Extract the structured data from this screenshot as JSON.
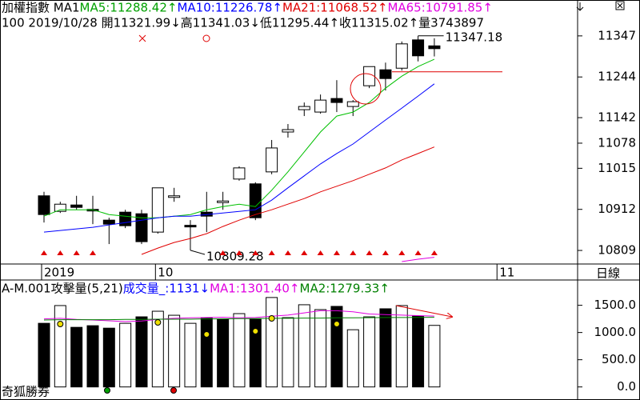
{
  "chart_data": [
    {
      "type": "candlestick",
      "title_parts": [
        {
          "text": "加權指數 MA1 ",
          "color": "#000000"
        },
        {
          "text": "MA5:11288.42↑",
          "color": "#00a000"
        },
        {
          "text": "MA10:11226.78↑",
          "color": "#0000ff"
        },
        {
          "text": "MA21:11068.52↑",
          "color": "#e00000"
        },
        {
          "text": "MA65:10791.85↑",
          "color": "#e000e0"
        }
      ],
      "info_parts": [
        {
          "text": "100 2019/10/28 開11321.99↓高11341.03↓低11295.44↑收11315.02↑量3743897",
          "color": "#000000"
        }
      ],
      "categories": [
        "2019",
        null,
        null,
        null,
        null,
        null,
        null,
        "10",
        null,
        null,
        null,
        null,
        null,
        null,
        null,
        null,
        null,
        null,
        null,
        null,
        null,
        null,
        null,
        null,
        null,
        null,
        null,
        null,
        "11",
        null,
        null,
        null,
        null
      ],
      "open": [
        10946,
        10907,
        10923,
        10912,
        10885,
        10905,
        10901,
        10855,
        10946,
        10872,
        10905,
        10933,
        10988,
        10976,
        11006,
        11106,
        11162,
        11156,
        11190,
        11170,
        11222,
        11262,
        11266,
        11337,
        11321.99,
        null,
        null,
        null,
        null,
        null,
        null,
        null,
        null
      ],
      "high": [
        10956,
        10931,
        10946,
        10946,
        10891,
        10911,
        10911,
        10966,
        10966,
        10885,
        10956,
        10956,
        11020,
        10980,
        11086,
        11126,
        11180,
        11200,
        11236,
        11186,
        11270,
        11280,
        11333,
        11347.18,
        11341.03,
        null,
        null,
        null,
        null,
        null,
        null,
        null,
        null
      ],
      "low": [
        10879,
        10903,
        10911,
        10875,
        10825,
        10865,
        10825,
        10851,
        10931,
        10809.28,
        10855,
        10911,
        10984,
        10885,
        11000,
        11092,
        11146,
        11152,
        11156,
        11146,
        11216,
        11210,
        11260,
        11283,
        11295.44,
        null,
        null,
        null,
        null,
        null,
        null,
        null,
        null
      ],
      "close": [
        10899,
        10925,
        10917,
        10911,
        10875,
        10871,
        10831,
        10966,
        10946,
        10871,
        10895,
        10933,
        11016,
        10891,
        11066,
        11112,
        11170,
        11186,
        11180,
        11182,
        11270,
        11240,
        11327,
        11297,
        11315.02,
        null,
        null,
        null,
        null,
        null,
        null,
        null,
        null
      ],
      "series": [
        {
          "color": "#00c000",
          "values": [
            10895,
            10911,
            10911,
            10911,
            10899,
            10895,
            10891,
            10891,
            10895,
            10899,
            10911,
            10919,
            10925,
            10919,
            10960,
            11006,
            11056,
            11106,
            11146,
            11156,
            11180,
            11216,
            11246,
            11270,
            11288.42,
            null,
            null,
            null,
            null,
            null,
            null,
            null,
            null
          ]
        },
        {
          "color": "#0000ff",
          "values": [
            10855,
            10859,
            10863,
            10867,
            10873,
            10879,
            10885,
            10891,
            10895,
            10895,
            10899,
            10903,
            10907,
            10911,
            10935,
            10966,
            10996,
            11026,
            11052,
            11076,
            11106,
            11136,
            11166,
            11196,
            11226.78,
            null,
            null,
            null,
            null,
            null,
            null,
            null,
            null
          ]
        },
        {
          "color": "#e00000",
          "values": [
            null,
            null,
            null,
            null,
            null,
            null,
            10799,
            10815,
            10829,
            10839,
            10851,
            10869,
            10885,
            10899,
            10911,
            10925,
            10939,
            10956,
            10970,
            10984,
            11000,
            11016,
            11036,
            11052,
            11068.52,
            null,
            null,
            null,
            null,
            null,
            null,
            null,
            null
          ]
        },
        {
          "color": "#e000e0",
          "values": [
            null,
            null,
            null,
            null,
            null,
            null,
            null,
            null,
            null,
            null,
            null,
            null,
            null,
            null,
            null,
            null,
            null,
            null,
            null,
            null,
            null,
            null,
            10781,
            10787,
            10791.85,
            null,
            null,
            null,
            null,
            null,
            null,
            null,
            null
          ]
        }
      ],
      "annotations": [
        "11347.18",
        "10809.28"
      ],
      "hline": 11257,
      "hline_color": "#e00000",
      "ylim": [
        10775,
        11437
      ],
      "yticks": [
        11347,
        11244,
        11142,
        11078,
        11015,
        10912,
        10809
      ],
      "period_label": "日線"
    },
    {
      "type": "bar",
      "title_parts": [
        {
          "text": "A-M.001攻擊量(5,21) ",
          "color": "#000000"
        },
        {
          "text": "成交量_:1131↓",
          "color": "#0000ff"
        },
        {
          "text": "MA1:1301.40↑",
          "color": "#e000e0"
        },
        {
          "text": "MA2:1279.33↑",
          "color": "#008000"
        }
      ],
      "values": [
        1169,
        1495,
        1095,
        1125,
        1080,
        1169,
        1288,
        1391,
        1317,
        1169,
        1273,
        1243,
        1347,
        1243,
        1643,
        1273,
        1510,
        1421,
        1480,
        1051,
        1288,
        1436,
        1495,
        1302,
        1131,
        null,
        null,
        null,
        null,
        null,
        null,
        null,
        null
      ],
      "colors": [
        "#000000",
        "#ffffff",
        "#000000",
        "#000000",
        "#000000",
        "#ffffff",
        "#000000",
        "#ffffff",
        "#ffffff",
        "#ffffff",
        "#000000",
        "#000000",
        "#ffffff",
        "#000000",
        "#ffffff",
        "#ffffff",
        "#ffffff",
        "#ffffff",
        "#000000",
        "#ffffff",
        "#ffffff",
        "#000000",
        "#ffffff",
        "#000000",
        "#ffffff",
        null,
        null,
        null,
        null,
        null,
        null,
        null,
        null
      ],
      "series": [
        {
          "color": "#e000e0",
          "values": [
            1250,
            1260,
            1240,
            1230,
            1215,
            1200,
            1210,
            1240,
            1260,
            1270,
            1275,
            1280,
            1270,
            1275,
            1300,
            1320,
            1360,
            1400,
            1400,
            1380,
            1340,
            1330,
            1320,
            1310,
            1301.4,
            null,
            null,
            null,
            null,
            null,
            null,
            null,
            null
          ]
        },
        {
          "color": "#008000",
          "values": [
            1230,
            1235,
            1235,
            1235,
            1235,
            1240,
            1240,
            1245,
            1245,
            1245,
            1250,
            1250,
            1255,
            1255,
            1260,
            1260,
            1265,
            1265,
            1270,
            1270,
            1272,
            1275,
            1276,
            1278,
            1279.33,
            null,
            null,
            null,
            null,
            null,
            null,
            null,
            null
          ]
        }
      ],
      "ylim": [
        -240,
        1950
      ],
      "yticks": [
        {
          "value": 1500,
          "label": "1500.0"
        },
        {
          "value": 1000,
          "label": "1000.0"
        },
        {
          "value": 500,
          "label": "500.0"
        },
        {
          "value": 0,
          "label": "0.0"
        }
      ],
      "footer": "奇狐勝券"
    }
  ]
}
